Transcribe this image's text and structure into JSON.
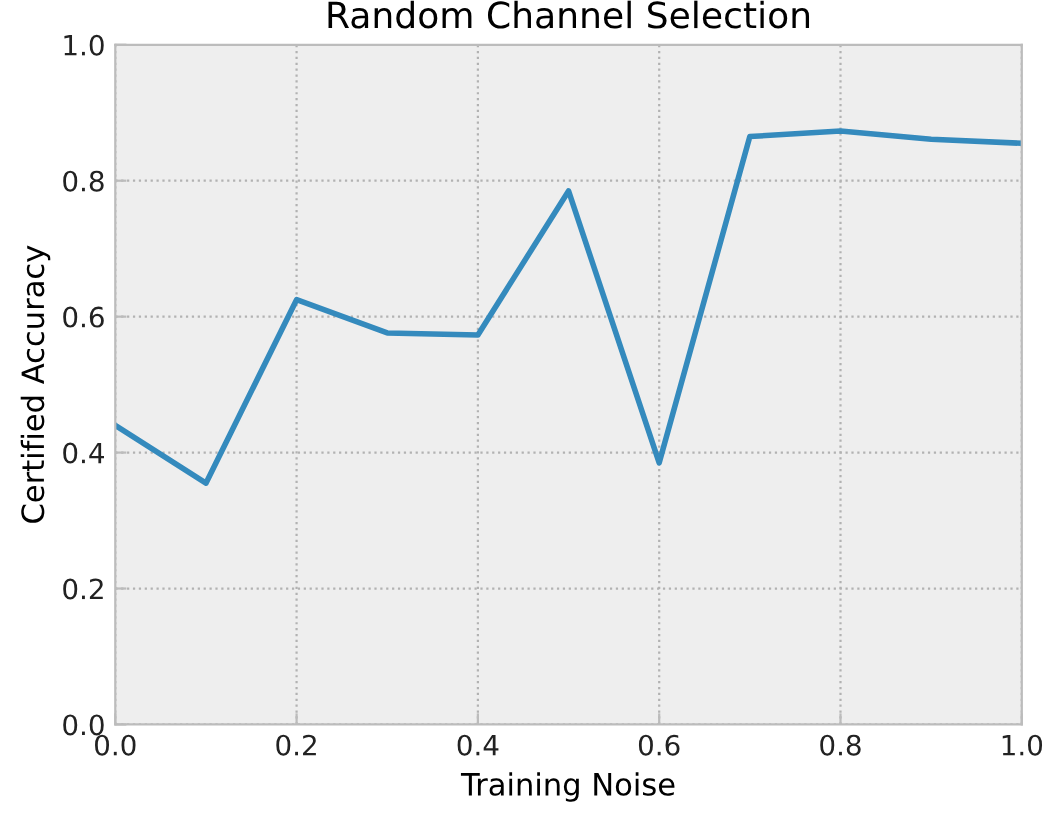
{
  "chart_data": {
    "type": "line",
    "title": "Random Channel Selection",
    "xlabel": "Training Noise",
    "ylabel": "Certified Accuracy",
    "x": [
      0.0,
      0.1,
      0.2,
      0.3,
      0.4,
      0.5,
      0.6,
      0.7,
      0.8,
      0.9,
      1.0
    ],
    "series": [
      {
        "color": "#348abd",
        "values": [
          0.44,
          0.355,
          0.625,
          0.576,
          0.573,
          0.785,
          0.385,
          0.865,
          0.873,
          0.861,
          0.855
        ]
      }
    ],
    "xlim": [
      0.0,
      1.0
    ],
    "ylim": [
      0.0,
      1.0
    ],
    "xticks": [
      {
        "value": 0.0,
        "label": "0.0"
      },
      {
        "value": 0.2,
        "label": "0.2"
      },
      {
        "value": 0.4,
        "label": "0.4"
      },
      {
        "value": 0.6,
        "label": "0.6"
      },
      {
        "value": 0.8,
        "label": "0.8"
      },
      {
        "value": 1.0,
        "label": "1.0"
      }
    ],
    "yticks": [
      {
        "value": 0.0,
        "label": "0.0"
      },
      {
        "value": 0.2,
        "label": "0.2"
      },
      {
        "value": 0.4,
        "label": "0.4"
      },
      {
        "value": 0.6,
        "label": "0.6"
      },
      {
        "value": 0.8,
        "label": "0.8"
      },
      {
        "value": 1.0,
        "label": "1.0"
      }
    ],
    "grid": true,
    "line_style": "solid"
  }
}
